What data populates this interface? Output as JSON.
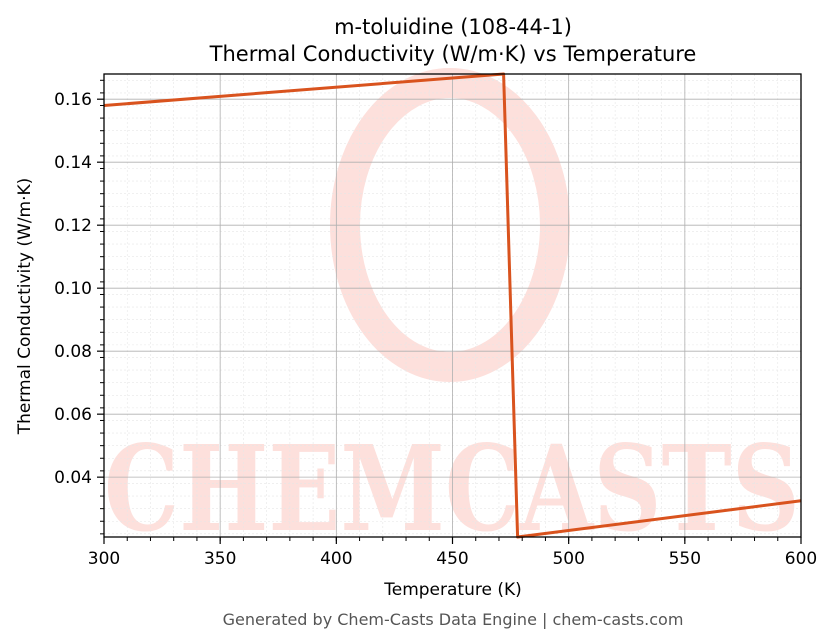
{
  "chart_data": {
    "type": "line",
    "title": "m-toluidine (108-44-1)",
    "subtitle": "Thermal Conductivity (W/m·K) vs Temperature",
    "xlabel": "Temperature (K)",
    "ylabel": "Thermal Conductivity (W/m·K)",
    "xlim": [
      300,
      600
    ],
    "ylim": [
      0.021,
      0.168
    ],
    "x_ticks": [
      300,
      350,
      400,
      450,
      500,
      550,
      600
    ],
    "x_tick_labels": [
      "300",
      "350",
      "400",
      "450",
      "500",
      "550",
      "600"
    ],
    "y_ticks": [
      0.04,
      0.06,
      0.08,
      0.1,
      0.12,
      0.14,
      0.16
    ],
    "y_tick_labels": [
      "0.04",
      "0.06",
      "0.08",
      "0.10",
      "0.12",
      "0.14",
      "0.16"
    ],
    "grid": true,
    "series": [
      {
        "color": "#d9531e",
        "x": [
          300,
          472,
          478,
          600
        ],
        "y": [
          0.158,
          0.168,
          0.021,
          0.0325
        ]
      }
    ]
  },
  "watermark": "CHEMCASTS",
  "footer": "Generated by Chem-Casts Data Engine | chem-casts.com"
}
